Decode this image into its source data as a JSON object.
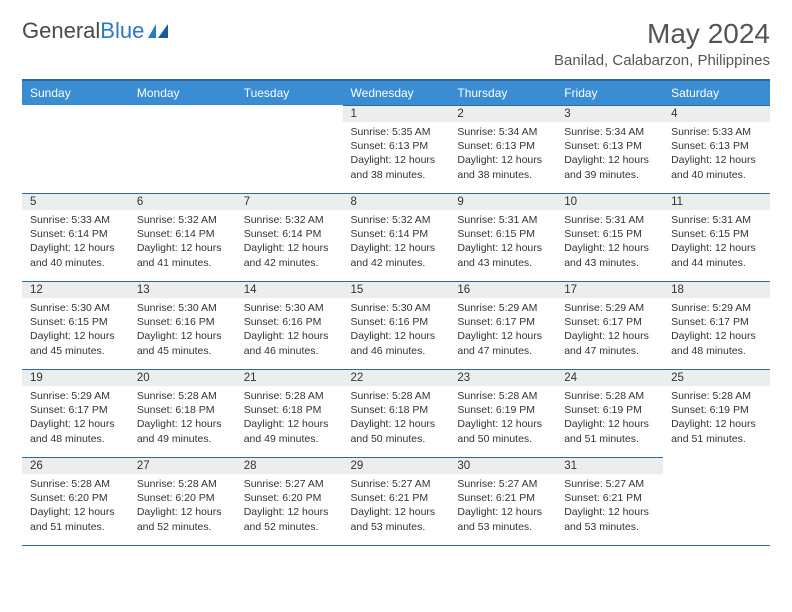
{
  "logo": {
    "name_part1": "General",
    "name_part2": "Blue"
  },
  "title": "May 2024",
  "location": "Banilad, Calabarzon, Philippines",
  "colors": {
    "header_bg": "#3a8cd3",
    "header_border": "#2a6aa0",
    "daynum_bg": "#eceded",
    "text": "#333333",
    "logo_blue": "#2b78c2"
  },
  "day_headers": [
    "Sunday",
    "Monday",
    "Tuesday",
    "Wednesday",
    "Thursday",
    "Friday",
    "Saturday"
  ],
  "weeks": [
    [
      {
        "empty": true
      },
      {
        "empty": true
      },
      {
        "empty": true
      },
      {
        "num": "1",
        "sunrise": "Sunrise: 5:35 AM",
        "sunset": "Sunset: 6:13 PM",
        "daylight": "Daylight: 12 hours and 38 minutes."
      },
      {
        "num": "2",
        "sunrise": "Sunrise: 5:34 AM",
        "sunset": "Sunset: 6:13 PM",
        "daylight": "Daylight: 12 hours and 38 minutes."
      },
      {
        "num": "3",
        "sunrise": "Sunrise: 5:34 AM",
        "sunset": "Sunset: 6:13 PM",
        "daylight": "Daylight: 12 hours and 39 minutes."
      },
      {
        "num": "4",
        "sunrise": "Sunrise: 5:33 AM",
        "sunset": "Sunset: 6:13 PM",
        "daylight": "Daylight: 12 hours and 40 minutes."
      }
    ],
    [
      {
        "num": "5",
        "sunrise": "Sunrise: 5:33 AM",
        "sunset": "Sunset: 6:14 PM",
        "daylight": "Daylight: 12 hours and 40 minutes."
      },
      {
        "num": "6",
        "sunrise": "Sunrise: 5:32 AM",
        "sunset": "Sunset: 6:14 PM",
        "daylight": "Daylight: 12 hours and 41 minutes."
      },
      {
        "num": "7",
        "sunrise": "Sunrise: 5:32 AM",
        "sunset": "Sunset: 6:14 PM",
        "daylight": "Daylight: 12 hours and 42 minutes."
      },
      {
        "num": "8",
        "sunrise": "Sunrise: 5:32 AM",
        "sunset": "Sunset: 6:14 PM",
        "daylight": "Daylight: 12 hours and 42 minutes."
      },
      {
        "num": "9",
        "sunrise": "Sunrise: 5:31 AM",
        "sunset": "Sunset: 6:15 PM",
        "daylight": "Daylight: 12 hours and 43 minutes."
      },
      {
        "num": "10",
        "sunrise": "Sunrise: 5:31 AM",
        "sunset": "Sunset: 6:15 PM",
        "daylight": "Daylight: 12 hours and 43 minutes."
      },
      {
        "num": "11",
        "sunrise": "Sunrise: 5:31 AM",
        "sunset": "Sunset: 6:15 PM",
        "daylight": "Daylight: 12 hours and 44 minutes."
      }
    ],
    [
      {
        "num": "12",
        "sunrise": "Sunrise: 5:30 AM",
        "sunset": "Sunset: 6:15 PM",
        "daylight": "Daylight: 12 hours and 45 minutes."
      },
      {
        "num": "13",
        "sunrise": "Sunrise: 5:30 AM",
        "sunset": "Sunset: 6:16 PM",
        "daylight": "Daylight: 12 hours and 45 minutes."
      },
      {
        "num": "14",
        "sunrise": "Sunrise: 5:30 AM",
        "sunset": "Sunset: 6:16 PM",
        "daylight": "Daylight: 12 hours and 46 minutes."
      },
      {
        "num": "15",
        "sunrise": "Sunrise: 5:30 AM",
        "sunset": "Sunset: 6:16 PM",
        "daylight": "Daylight: 12 hours and 46 minutes."
      },
      {
        "num": "16",
        "sunrise": "Sunrise: 5:29 AM",
        "sunset": "Sunset: 6:17 PM",
        "daylight": "Daylight: 12 hours and 47 minutes."
      },
      {
        "num": "17",
        "sunrise": "Sunrise: 5:29 AM",
        "sunset": "Sunset: 6:17 PM",
        "daylight": "Daylight: 12 hours and 47 minutes."
      },
      {
        "num": "18",
        "sunrise": "Sunrise: 5:29 AM",
        "sunset": "Sunset: 6:17 PM",
        "daylight": "Daylight: 12 hours and 48 minutes."
      }
    ],
    [
      {
        "num": "19",
        "sunrise": "Sunrise: 5:29 AM",
        "sunset": "Sunset: 6:17 PM",
        "daylight": "Daylight: 12 hours and 48 minutes."
      },
      {
        "num": "20",
        "sunrise": "Sunrise: 5:28 AM",
        "sunset": "Sunset: 6:18 PM",
        "daylight": "Daylight: 12 hours and 49 minutes."
      },
      {
        "num": "21",
        "sunrise": "Sunrise: 5:28 AM",
        "sunset": "Sunset: 6:18 PM",
        "daylight": "Daylight: 12 hours and 49 minutes."
      },
      {
        "num": "22",
        "sunrise": "Sunrise: 5:28 AM",
        "sunset": "Sunset: 6:18 PM",
        "daylight": "Daylight: 12 hours and 50 minutes."
      },
      {
        "num": "23",
        "sunrise": "Sunrise: 5:28 AM",
        "sunset": "Sunset: 6:19 PM",
        "daylight": "Daylight: 12 hours and 50 minutes."
      },
      {
        "num": "24",
        "sunrise": "Sunrise: 5:28 AM",
        "sunset": "Sunset: 6:19 PM",
        "daylight": "Daylight: 12 hours and 51 minutes."
      },
      {
        "num": "25",
        "sunrise": "Sunrise: 5:28 AM",
        "sunset": "Sunset: 6:19 PM",
        "daylight": "Daylight: 12 hours and 51 minutes."
      }
    ],
    [
      {
        "num": "26",
        "sunrise": "Sunrise: 5:28 AM",
        "sunset": "Sunset: 6:20 PM",
        "daylight": "Daylight: 12 hours and 51 minutes."
      },
      {
        "num": "27",
        "sunrise": "Sunrise: 5:28 AM",
        "sunset": "Sunset: 6:20 PM",
        "daylight": "Daylight: 12 hours and 52 minutes."
      },
      {
        "num": "28",
        "sunrise": "Sunrise: 5:27 AM",
        "sunset": "Sunset: 6:20 PM",
        "daylight": "Daylight: 12 hours and 52 minutes."
      },
      {
        "num": "29",
        "sunrise": "Sunrise: 5:27 AM",
        "sunset": "Sunset: 6:21 PM",
        "daylight": "Daylight: 12 hours and 53 minutes."
      },
      {
        "num": "30",
        "sunrise": "Sunrise: 5:27 AM",
        "sunset": "Sunset: 6:21 PM",
        "daylight": "Daylight: 12 hours and 53 minutes."
      },
      {
        "num": "31",
        "sunrise": "Sunrise: 5:27 AM",
        "sunset": "Sunset: 6:21 PM",
        "daylight": "Daylight: 12 hours and 53 minutes."
      },
      {
        "empty": true
      }
    ]
  ]
}
